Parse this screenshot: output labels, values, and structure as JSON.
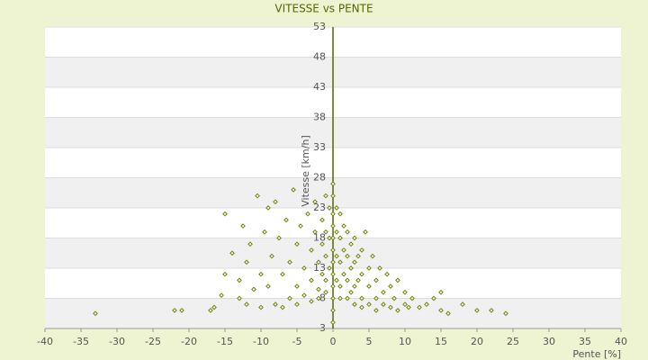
{
  "chart_data": {
    "type": "scatter",
    "title": "VITESSE vs PENTE",
    "x_label": "Pente [%]",
    "y_label": "Vitesse [km/h]",
    "color": "#6b7a00",
    "xlim": [
      -40,
      40
    ],
    "xticks": [
      -40,
      -35,
      -30,
      -25,
      -20,
      -15,
      -10,
      -5,
      0,
      5,
      10,
      15,
      20,
      25,
      30,
      35,
      40
    ],
    "ylim": [
      3,
      53
    ],
    "yticks": [
      3,
      8,
      13,
      18,
      23,
      28,
      33,
      38,
      43,
      48,
      53
    ],
    "x": [
      -33,
      -22,
      -21,
      -17,
      -16.5,
      -15.5,
      -15,
      -15,
      -14,
      -13,
      -13,
      -12.5,
      -12,
      -12,
      -11.5,
      -11,
      -10.5,
      -10,
      -10,
      -9.5,
      -9,
      -9,
      -8.5,
      -8,
      -8,
      -7.5,
      -7,
      -7,
      -6.5,
      -6,
      -6,
      -5.5,
      -5,
      -5,
      -5,
      -4.5,
      -4,
      -4,
      -3.5,
      -3,
      -3,
      -3,
      -2.5,
      -2.5,
      -2,
      -2,
      -2,
      -1.5,
      -1.5,
      -1.5,
      -1,
      -1,
      -1,
      -1,
      -1,
      -0.5,
      -0.5,
      -0.5,
      0,
      0,
      0,
      0,
      0,
      0,
      0,
      0,
      0,
      0,
      0,
      0,
      0.5,
      0.5,
      0.5,
      0.5,
      1,
      1,
      1,
      1,
      1,
      1.5,
      1.5,
      1.5,
      2,
      2,
      2,
      2,
      2.5,
      2.5,
      2.5,
      3,
      3,
      3,
      3,
      3.5,
      3.5,
      4,
      4,
      4,
      4,
      4.5,
      5,
      5,
      5,
      5.5,
      6,
      6,
      6,
      6.5,
      7,
      7,
      7.5,
      8,
      8,
      8.5,
      9,
      9,
      10,
      10,
      10.5,
      11,
      12,
      13,
      14,
      15,
      15,
      16,
      18,
      20,
      22,
      24
    ],
    "y": [
      5.5,
      6,
      6,
      6,
      6.5,
      8.5,
      12,
      22,
      15.5,
      8,
      11,
      20,
      14,
      7,
      17,
      9.5,
      25,
      12,
      6.5,
      19,
      23,
      10,
      15,
      7,
      24,
      18,
      12,
      6.5,
      21,
      14,
      8,
      26,
      17,
      10,
      7,
      20,
      13,
      8.5,
      22,
      16,
      11,
      7.5,
      24,
      19,
      14,
      9.5,
      8,
      21,
      17,
      12,
      25,
      19,
      15,
      11,
      9,
      23,
      18,
      13,
      27,
      25,
      22,
      20,
      18,
      16,
      14,
      12,
      10,
      8,
      6,
      4,
      23,
      19,
      15,
      11,
      22,
      18,
      14,
      10,
      8,
      20,
      16,
      12,
      19,
      15,
      11,
      8,
      17,
      13,
      9,
      18,
      14,
      10,
      7,
      15,
      11,
      16,
      12,
      8,
      6.5,
      19,
      13,
      10,
      7,
      15,
      11,
      8,
      6,
      13,
      9,
      7,
      12,
      10,
      6.5,
      8,
      11,
      6,
      9,
      7,
      6.5,
      8,
      6.5,
      7,
      8,
      9,
      6,
      5.5,
      7,
      6,
      6,
      5.5
    ],
    "grid": true
  }
}
